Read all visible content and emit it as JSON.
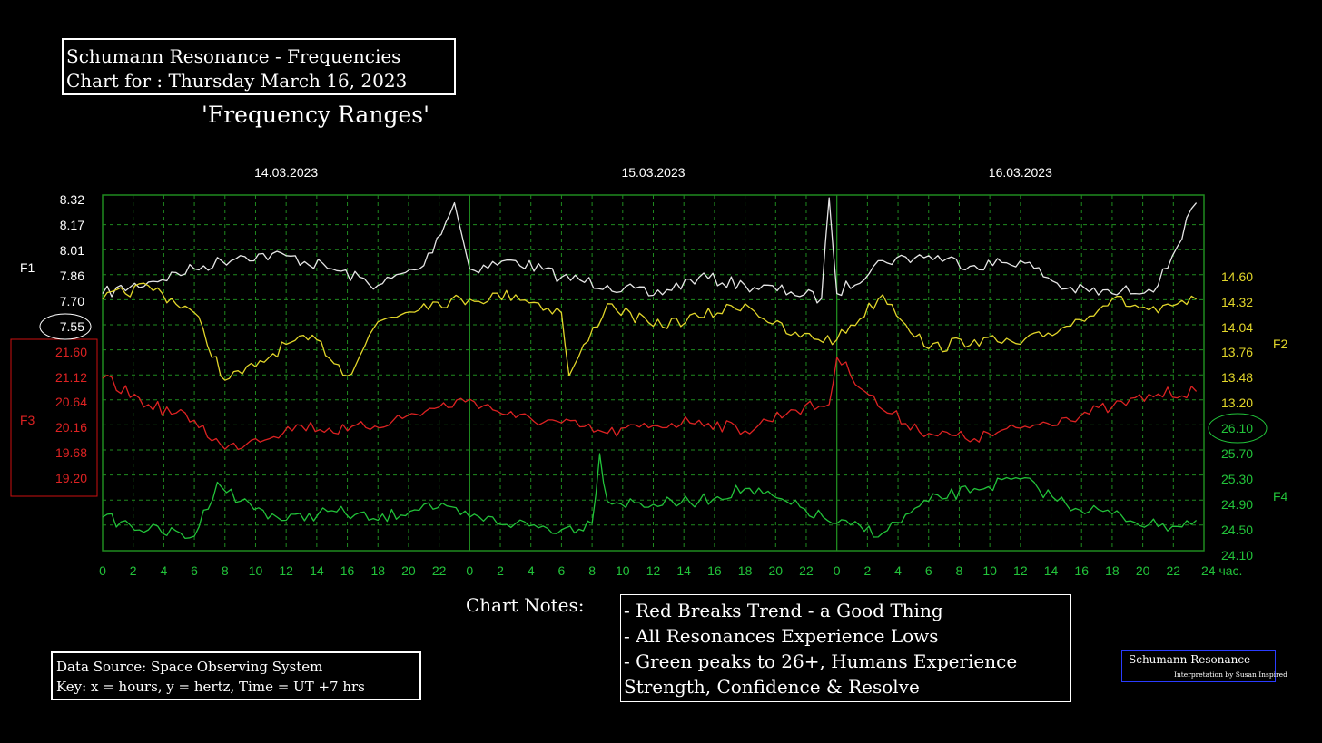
{
  "header": {
    "title_line1": "Schumann Resonance - Frequencies",
    "title_line2": "Chart for :  Thursday March 16, 2023",
    "subtitle": "'Frequency Ranges'"
  },
  "notes": {
    "label": "Chart Notes:",
    "lines": [
      "- Red Breaks Trend - a Good Thing",
      "- All Resonances Experience Lows",
      "- Green peaks to 26+, Humans Experience",
      "Strength, Confidence & Resolve"
    ]
  },
  "source": {
    "line1": "Data Source: Space Observing System",
    "line2": "Key: x = hours, y = hertz, Time = UT +7 hrs"
  },
  "brand": {
    "name": "Schumann Resonance",
    "sub": "Interpretation by Susan Inspired"
  },
  "chart_data": {
    "type": "line",
    "title": "",
    "xlabel": "",
    "ylabel": "",
    "grid": true,
    "colors": {
      "background": "#000000",
      "frame": "#1f8a1f",
      "grid": "#1f8a1f",
      "f1": "#e6e6e6",
      "f2": "#e2d62a",
      "f3": "#dd2222",
      "f4": "#22c33a",
      "x_tick": "#22c33a",
      "f3_box": "#cc1111"
    },
    "dates": [
      "14.03.2023",
      "15.03.2023",
      "16.03.2023"
    ],
    "x_ticks": [
      "0",
      "2",
      "4",
      "6",
      "8",
      "10",
      "12",
      "14",
      "16",
      "18",
      "20",
      "22",
      "0",
      "2",
      "4",
      "6",
      "8",
      "10",
      "12",
      "14",
      "16",
      "18",
      "20",
      "22",
      "0",
      "2",
      "4",
      "6",
      "8",
      "10",
      "12",
      "14",
      "16",
      "18",
      "20",
      "22",
      "24 час."
    ],
    "axes": {
      "f1": {
        "label": "F1",
        "ticks": [
          "8.32",
          "8.17",
          "8.01",
          "7.86",
          "7.70",
          "7.55"
        ]
      },
      "f3": {
        "label": "F3",
        "ticks": [
          "21.60",
          "21.12",
          "20.64",
          "20.16",
          "19.68",
          "19.20"
        ]
      },
      "f2": {
        "label": "F2",
        "ticks": [
          "14.60",
          "14.32",
          "14.04",
          "13.76",
          "13.48",
          "13.20"
        ]
      },
      "f4": {
        "label": "F4",
        "ticks": [
          "26.10",
          "25.70",
          "25.30",
          "24.90",
          "24.50",
          "24.10"
        ]
      }
    },
    "highlighted_ticks": [
      "7.55",
      "26.10"
    ],
    "series": [
      {
        "name": "F1",
        "axis": "f1",
        "x": [
          0,
          3,
          6,
          9,
          12,
          15,
          18,
          21,
          23,
          24,
          27,
          30,
          33,
          36,
          39,
          42,
          45,
          47,
          47.5,
          48,
          51,
          54,
          57,
          60,
          63,
          66,
          69,
          71.5
        ],
        "y": [
          7.75,
          7.82,
          7.9,
          7.98,
          7.98,
          7.9,
          7.8,
          7.92,
          8.3,
          7.9,
          7.95,
          7.85,
          7.8,
          7.74,
          7.85,
          7.8,
          7.76,
          7.72,
          8.33,
          7.75,
          7.95,
          7.98,
          7.92,
          7.95,
          7.78,
          7.75,
          7.8,
          8.3
        ]
      },
      {
        "name": "F2",
        "axis": "f2",
        "x": [
          0,
          3,
          6,
          8,
          10,
          12,
          14,
          16,
          18,
          21,
          24,
          27,
          30,
          30.5,
          33,
          36,
          39,
          42,
          45,
          48,
          51,
          54,
          57,
          60,
          63,
          66,
          69,
          71.5
        ],
        "y": [
          14.35,
          14.5,
          14.2,
          13.45,
          13.6,
          13.85,
          13.9,
          13.5,
          14.1,
          14.3,
          14.35,
          14.4,
          14.2,
          13.5,
          14.3,
          14.05,
          14.15,
          14.3,
          13.95,
          13.9,
          14.4,
          13.8,
          13.9,
          13.85,
          14.05,
          14.35,
          14.2,
          14.35
        ]
      },
      {
        "name": "F3",
        "axis": "f3",
        "x": [
          0,
          3,
          6,
          8,
          10,
          13,
          16,
          19,
          22,
          24,
          27,
          30,
          33,
          36,
          39,
          42,
          45,
          47.5,
          48,
          51,
          54,
          57,
          60,
          63,
          66,
          69,
          71.5
        ],
        "y": [
          21.1,
          20.6,
          20.3,
          19.75,
          19.95,
          20.2,
          20.1,
          20.3,
          20.55,
          20.7,
          20.35,
          20.25,
          20.05,
          20.2,
          20.3,
          20.1,
          20.5,
          20.6,
          21.5,
          20.5,
          20.05,
          19.95,
          20.15,
          20.35,
          20.55,
          20.8,
          20.85
        ]
      },
      {
        "name": "F4",
        "axis": "f4",
        "x": [
          0,
          3,
          6,
          7.5,
          9,
          12,
          15,
          18,
          21,
          24,
          27,
          30,
          32,
          32.5,
          33,
          36,
          39,
          42,
          45,
          48,
          51,
          54,
          57,
          60,
          63,
          66,
          69,
          71.5
        ],
        "y": [
          24.7,
          24.5,
          24.4,
          25.25,
          24.95,
          24.65,
          24.8,
          24.65,
          24.9,
          24.7,
          24.6,
          24.5,
          24.6,
          25.7,
          24.95,
          24.9,
          24.95,
          25.15,
          24.9,
          24.6,
          24.45,
          24.95,
          25.15,
          25.3,
          24.9,
          24.75,
          24.55,
          24.65
        ]
      }
    ]
  }
}
